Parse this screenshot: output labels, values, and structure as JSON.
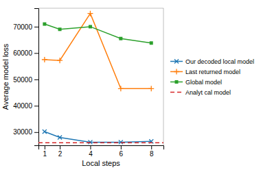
{
  "chart_data": {
    "type": "line",
    "x": [
      1,
      2,
      4,
      6,
      8
    ],
    "series": [
      {
        "name": "Our decoded local model",
        "color": "#1f77b4",
        "marker": "x",
        "values": [
          30200,
          28000,
          26200,
          26200,
          26500
        ]
      },
      {
        "name": "Last returned model",
        "color": "#ff7f0e",
        "marker": "plus",
        "values": [
          57500,
          57200,
          75000,
          46500,
          46500
        ]
      },
      {
        "name": "Global model",
        "color": "#2ca02c",
        "marker": "square",
        "values": [
          71000,
          69000,
          70000,
          65500,
          63800
        ]
      },
      {
        "name": "Analyt cal model",
        "type": "hline",
        "color": "#d62728",
        "line_style": "dashed",
        "value": 26000
      }
    ],
    "xlabel": "Local steps",
    "ylabel": "Average model loss",
    "xlim": [
      0.6,
      8.8
    ],
    "ylim": [
      25000,
      77000
    ],
    "xticks": [
      1,
      2,
      4,
      6,
      8
    ],
    "yticks": [
      30000,
      40000,
      50000,
      60000,
      70000
    ],
    "legend": "center right"
  }
}
